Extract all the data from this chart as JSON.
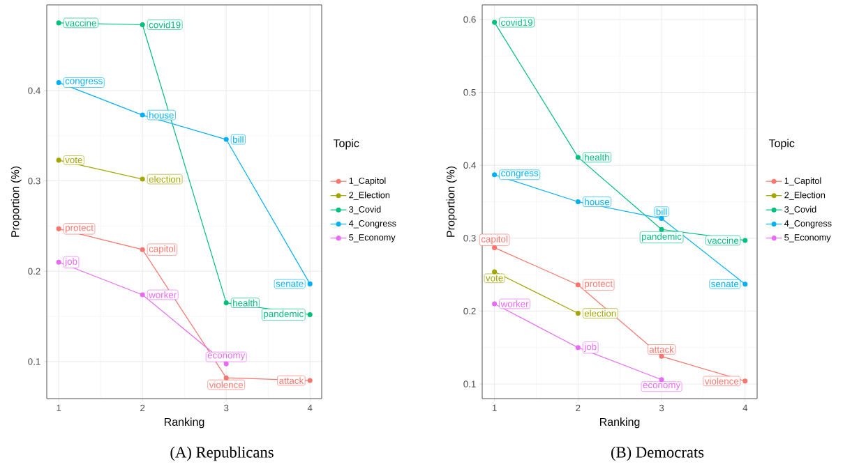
{
  "chart_data": [
    {
      "type": "line",
      "title": "(A) Republicans",
      "xlabel": "Ranking",
      "ylabel": "Proportion (%)",
      "legend_title": "Topic",
      "x": [
        1,
        2,
        3,
        4
      ],
      "series": [
        {
          "name": "1_Capitol",
          "color": "#f8766d",
          "values": [
            0.247,
            0.224,
            0.082,
            0.079
          ]
        },
        {
          "name": "2_Election",
          "color": "#a3a500",
          "values": [
            0.323,
            0.302,
            null,
            null
          ]
        },
        {
          "name": "3_Covid",
          "color": "#00bf7d",
          "values": [
            0.475,
            0.473,
            0.165,
            0.152
          ]
        },
        {
          "name": "4_Congress",
          "color": "#00b0f6",
          "values": [
            0.409,
            0.373,
            0.346,
            0.186
          ]
        },
        {
          "name": "5_Economy",
          "color": "#e76bf3",
          "values": [
            0.21,
            0.174,
            0.0975,
            null
          ]
        }
      ],
      "xlim": [
        0.857,
        4.14
      ],
      "ylim": [
        0.059,
        0.495
      ],
      "xticks": [
        1,
        2,
        3,
        4
      ],
      "yticks": [
        0.1,
        0.2,
        0.3,
        0.4
      ],
      "grid": true,
      "legend": "right",
      "marker": "circle",
      "annotations": [
        {
          "text": "protect",
          "x": 1,
          "y": 0.247
        },
        {
          "text": "capitol",
          "x": 2,
          "y": 0.224
        },
        {
          "text": "violence",
          "x": 3,
          "y": 0.082
        },
        {
          "text": "attack",
          "x": 4,
          "y": 0.079
        },
        {
          "text": "vote",
          "x": 1,
          "y": 0.323
        },
        {
          "text": "election",
          "x": 2,
          "y": 0.302
        },
        {
          "text": "vaccine",
          "x": 1,
          "y": 0.475
        },
        {
          "text": "covid19",
          "x": 2,
          "y": 0.473
        },
        {
          "text": "health",
          "x": 3,
          "y": 0.165
        },
        {
          "text": "pandemic",
          "x": 4,
          "y": 0.152
        },
        {
          "text": "congress",
          "x": 1,
          "y": 0.409
        },
        {
          "text": "house",
          "x": 2,
          "y": 0.373
        },
        {
          "text": "bill",
          "x": 3,
          "y": 0.346
        },
        {
          "text": "senate",
          "x": 4,
          "y": 0.186
        },
        {
          "text": "job",
          "x": 1,
          "y": 0.21
        },
        {
          "text": "worker",
          "x": 2,
          "y": 0.174
        },
        {
          "text": "economy",
          "x": 3,
          "y": 0.0975
        }
      ]
    },
    {
      "type": "line",
      "title": "(B) Democrats",
      "xlabel": "Ranking",
      "ylabel": "Proportion (%)",
      "legend_title": "Topic",
      "x": [
        1,
        2,
        3,
        4
      ],
      "series": [
        {
          "name": "1_Capitol",
          "color": "#f8766d",
          "values": [
            0.287,
            0.236,
            0.138,
            0.104
          ]
        },
        {
          "name": "2_Election",
          "color": "#a3a500",
          "values": [
            0.254,
            0.197,
            null,
            null
          ]
        },
        {
          "name": "3_Covid",
          "color": "#00bf7d",
          "values": [
            0.596,
            0.411,
            0.312,
            0.297
          ]
        },
        {
          "name": "4_Congress",
          "color": "#00b0f6",
          "values": [
            0.387,
            0.35,
            0.327,
            0.237
          ]
        },
        {
          "name": "5_Economy",
          "color": "#e76bf3",
          "values": [
            0.21,
            0.15,
            0.106,
            null
          ]
        }
      ],
      "xlim": [
        0.853,
        4.144
      ],
      "ylim": [
        0.08,
        0.62
      ],
      "xticks": [
        1,
        2,
        3,
        4
      ],
      "yticks": [
        0.1,
        0.2,
        0.3,
        0.4,
        0.5,
        0.6
      ],
      "grid": true,
      "legend": "right",
      "marker": "circle",
      "annotations": [
        {
          "text": "capitol",
          "x": 1,
          "y": 0.287
        },
        {
          "text": "protect",
          "x": 2,
          "y": 0.236
        },
        {
          "text": "attack",
          "x": 3,
          "y": 0.138
        },
        {
          "text": "violence",
          "x": 4,
          "y": 0.104
        },
        {
          "text": "vote",
          "x": 1,
          "y": 0.254
        },
        {
          "text": "election",
          "x": 2,
          "y": 0.197
        },
        {
          "text": "covid19",
          "x": 1,
          "y": 0.596
        },
        {
          "text": "health",
          "x": 2,
          "y": 0.411
        },
        {
          "text": "pandemic",
          "x": 3,
          "y": 0.312
        },
        {
          "text": "vaccine",
          "x": 4,
          "y": 0.297
        },
        {
          "text": "congress",
          "x": 1,
          "y": 0.387
        },
        {
          "text": "house",
          "x": 2,
          "y": 0.35
        },
        {
          "text": "bill",
          "x": 3,
          "y": 0.327
        },
        {
          "text": "senate",
          "x": 4,
          "y": 0.237
        },
        {
          "text": "worker",
          "x": 1,
          "y": 0.21
        },
        {
          "text": "job",
          "x": 2,
          "y": 0.15
        },
        {
          "text": "economy",
          "x": 3,
          "y": 0.106
        }
      ]
    }
  ]
}
